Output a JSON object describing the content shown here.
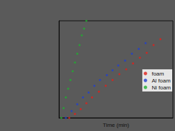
{
  "chart_data": {
    "type": "scatter",
    "x_label": "Time (min)",
    "xlim": [
      0,
      100
    ],
    "ylim": [
      0,
      100
    ],
    "xticks": [
      0,
      100
    ],
    "yticks": [
      0,
      100
    ],
    "tick_labels": false,
    "grid": false,
    "legend": "right",
    "series": [
      {
        "name": "foam",
        "color": "#e0201b",
        "marker": "circle",
        "x": [
          9,
          14,
          19,
          24,
          29,
          35,
          41,
          47,
          53,
          59,
          65,
          71,
          77,
          83,
          89
        ],
        "values": [
          0,
          4,
          9,
          15,
          21,
          27,
          33,
          39,
          45,
          50,
          56,
          62,
          67,
          75,
          81
        ]
      },
      {
        "name": "Al foam",
        "color": "#2040d0",
        "marker": "circle",
        "x": [
          6,
          11,
          16,
          21,
          26,
          31,
          36,
          42,
          47,
          52,
          58,
          64,
          70,
          76
        ],
        "values": [
          0,
          7,
          14,
          21,
          26,
          33,
          39,
          44,
          49,
          54,
          59,
          66,
          71,
          77
        ]
      },
      {
        "name": "Ni foam",
        "color": "#1fb030",
        "marker": "circle",
        "x": [
          2,
          4,
          6,
          8,
          10,
          12,
          14,
          16,
          18,
          20,
          22,
          24
        ],
        "values": [
          0,
          10,
          21,
          30,
          39,
          48,
          57,
          66,
          75,
          85,
          92,
          100
        ]
      }
    ]
  }
}
